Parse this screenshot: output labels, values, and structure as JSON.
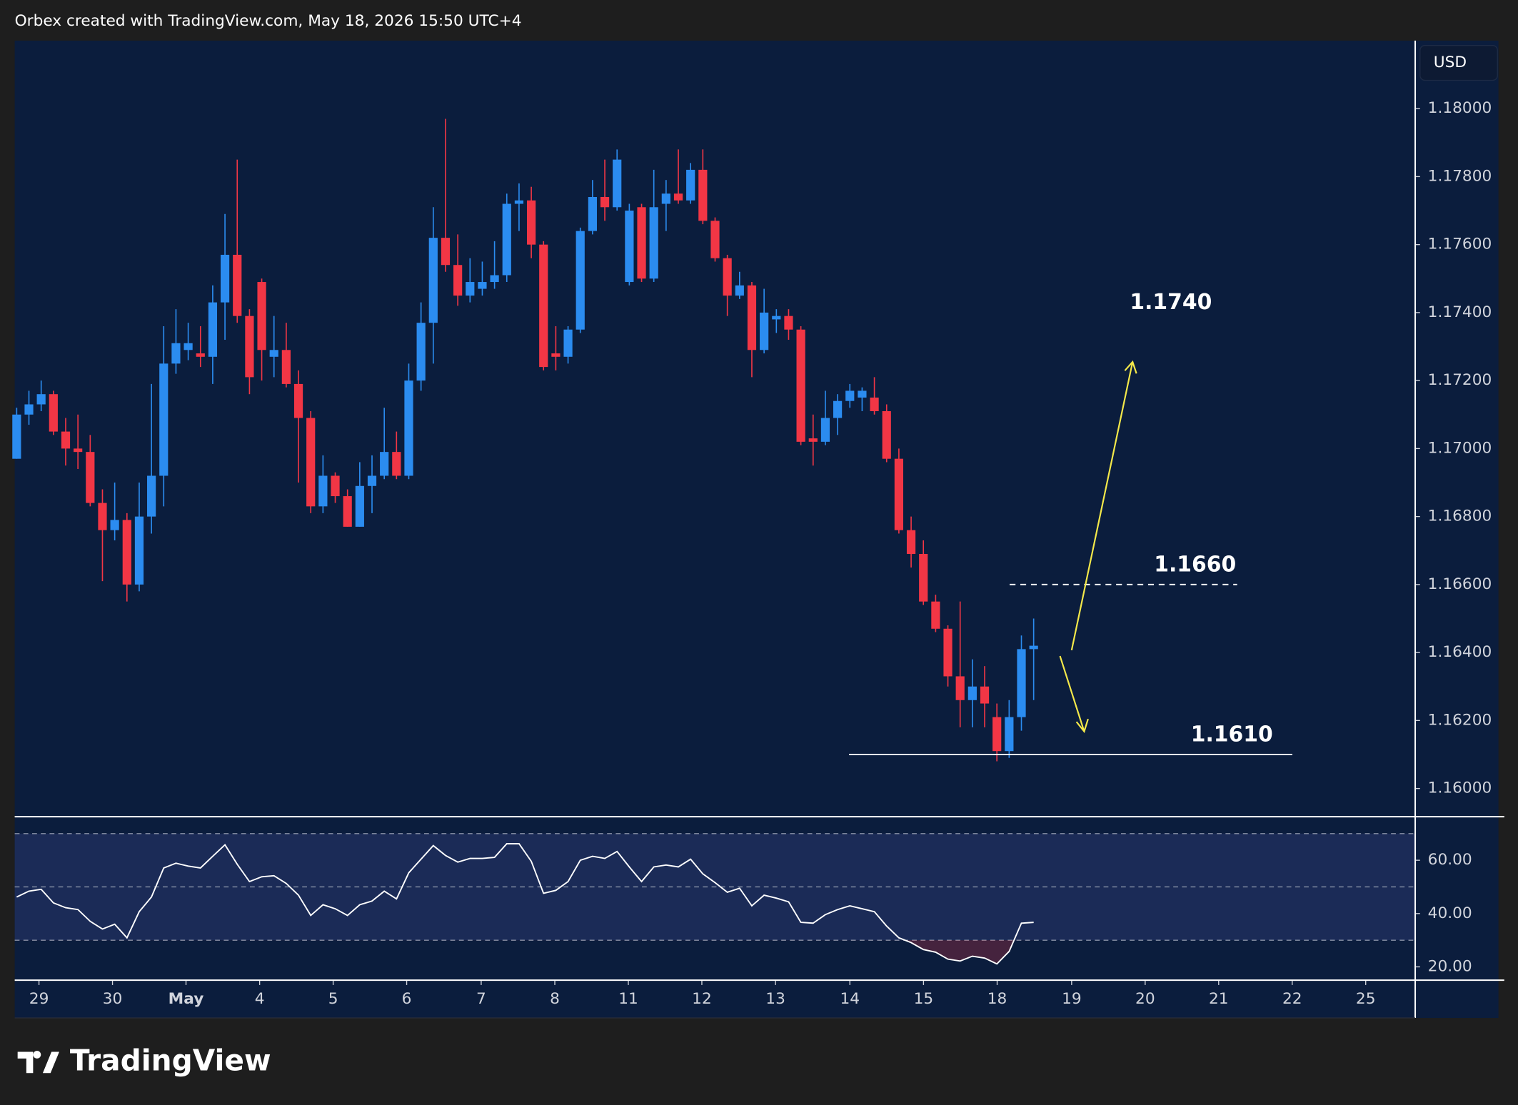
{
  "header": {
    "text": "Orbex created with TradingView.com, May 18, 2026 15:50 UTC+4"
  },
  "chart_data": {
    "type": "candlestick",
    "currency": "USD",
    "up_color": "#2b8cf0",
    "down_color": "#f23645",
    "open": [
      1.1697,
      1.171,
      1.1713,
      1.1716,
      1.1705,
      1.17,
      1.1699,
      1.1684,
      1.1676,
      1.1679,
      1.166,
      1.168,
      1.1692,
      1.1725,
      1.1729,
      1.1728,
      1.1727,
      1.1743,
      1.1757,
      1.1739,
      1.1749,
      1.1727,
      1.1729,
      1.1719,
      1.1709,
      1.1683,
      1.1692,
      1.1686,
      1.1677,
      1.1689,
      1.1692,
      1.1699,
      1.1692,
      1.172,
      1.1737,
      1.1762,
      1.1754,
      1.1745,
      1.1747,
      1.1749,
      1.1751,
      1.1772,
      1.1773,
      1.176,
      1.1728,
      1.1727,
      1.1735,
      1.1764,
      1.1774,
      1.1771,
      1.1749,
      1.1771,
      1.175,
      1.1772,
      1.1775,
      1.1773,
      1.1782,
      1.1767,
      1.1756,
      1.1745,
      1.1748,
      1.1729,
      1.1738,
      1.1739,
      1.1735,
      1.1703,
      1.1702,
      1.1709,
      1.1714,
      1.1715,
      1.1715,
      1.1711,
      1.1697,
      1.1676,
      1.1669,
      1.1655,
      1.1647,
      1.1633,
      1.1626,
      1.163,
      1.1621,
      1.1611,
      1.1621,
      1.1641
    ],
    "high": [
      1.1712,
      1.1717,
      1.172,
      1.1717,
      1.1709,
      1.171,
      1.1704,
      1.1688,
      1.169,
      1.1681,
      1.169,
      1.1719,
      1.1736,
      1.1741,
      1.1737,
      1.1736,
      1.1748,
      1.1769,
      1.1785,
      1.1741,
      1.175,
      1.1739,
      1.1737,
      1.1723,
      1.1711,
      1.1698,
      1.1693,
      1.1688,
      1.1696,
      1.1698,
      1.1712,
      1.1705,
      1.1725,
      1.1743,
      1.1771,
      1.1797,
      1.1763,
      1.1756,
      1.1755,
      1.1761,
      1.1775,
      1.1778,
      1.1777,
      1.1761,
      1.1736,
      1.1736,
      1.1765,
      1.1779,
      1.1785,
      1.1788,
      1.1772,
      1.1772,
      1.1782,
      1.1779,
      1.1788,
      1.1784,
      1.1788,
      1.1768,
      1.1757,
      1.1752,
      1.1749,
      1.1747,
      1.1741,
      1.1741,
      1.1736,
      1.171,
      1.1717,
      1.1716,
      1.1719,
      1.1718,
      1.1721,
      1.1713,
      1.17,
      1.168,
      1.1673,
      1.1657,
      1.1648,
      1.1655,
      1.1638,
      1.1636,
      1.1625,
      1.1626,
      1.1645,
      1.165
    ],
    "low": [
      1.1697,
      1.1707,
      1.1711,
      1.1704,
      1.1695,
      1.1694,
      1.1683,
      1.1661,
      1.1673,
      1.1655,
      1.1658,
      1.1675,
      1.1683,
      1.1722,
      1.1726,
      1.1724,
      1.1719,
      1.1732,
      1.1737,
      1.1716,
      1.172,
      1.1721,
      1.1718,
      1.169,
      1.1681,
      1.1681,
      1.1684,
      1.1677,
      1.1677,
      1.1681,
      1.1691,
      1.1691,
      1.1691,
      1.1717,
      1.1725,
      1.1752,
      1.1742,
      1.1743,
      1.1745,
      1.1747,
      1.1749,
      1.1764,
      1.1756,
      1.1723,
      1.1723,
      1.1725,
      1.1734,
      1.1763,
      1.1767,
      1.177,
      1.1748,
      1.1749,
      1.1749,
      1.1764,
      1.1772,
      1.1772,
      1.1766,
      1.1755,
      1.1739,
      1.1744,
      1.1721,
      1.1728,
      1.1734,
      1.1732,
      1.1701,
      1.1695,
      1.1701,
      1.1704,
      1.1712,
      1.1711,
      1.171,
      1.1696,
      1.1675,
      1.1665,
      1.1654,
      1.1646,
      1.163,
      1.1618,
      1.1618,
      1.1618,
      1.1608,
      1.1609,
      1.1617,
      1.1626
    ],
    "close": [
      1.171,
      1.1713,
      1.1716,
      1.1705,
      1.17,
      1.1699,
      1.1684,
      1.1676,
      1.1679,
      1.166,
      1.168,
      1.1692,
      1.1725,
      1.1731,
      1.1731,
      1.1727,
      1.1743,
      1.1757,
      1.1739,
      1.1721,
      1.1729,
      1.1729,
      1.1719,
      1.1709,
      1.1683,
      1.1692,
      1.1686,
      1.1677,
      1.1689,
      1.1692,
      1.1699,
      1.1692,
      1.172,
      1.1737,
      1.1762,
      1.1754,
      1.1745,
      1.1749,
      1.1749,
      1.1751,
      1.1772,
      1.1773,
      1.176,
      1.1724,
      1.1727,
      1.1735,
      1.1764,
      1.1774,
      1.1771,
      1.1785,
      1.177,
      1.175,
      1.1771,
      1.1775,
      1.1773,
      1.1782,
      1.1767,
      1.1756,
      1.1745,
      1.1748,
      1.1729,
      1.174,
      1.1739,
      1.1735,
      1.1702,
      1.1702,
      1.1709,
      1.1714,
      1.1717,
      1.1717,
      1.1711,
      1.1697,
      1.1676,
      1.1669,
      1.1655,
      1.1647,
      1.1633,
      1.1626,
      1.163,
      1.1625,
      1.1611,
      1.1621,
      1.1641,
      1.1642
    ],
    "ylim": [
      1.1592,
      1.182
    ],
    "yticks": [
      {
        "value": 1.16,
        "label": "1.16000"
      },
      {
        "value": 1.162,
        "label": "1.16200"
      },
      {
        "value": 1.164,
        "label": "1.16400"
      },
      {
        "value": 1.166,
        "label": "1.16600"
      },
      {
        "value": 1.168,
        "label": "1.16800"
      },
      {
        "value": 1.17,
        "label": "1.17000"
      },
      {
        "value": 1.172,
        "label": "1.17200"
      },
      {
        "value": 1.174,
        "label": "1.17400"
      },
      {
        "value": 1.176,
        "label": "1.17600"
      },
      {
        "value": 1.178,
        "label": "1.17800"
      },
      {
        "value": 1.18,
        "label": "1.18000"
      }
    ],
    "xlim": [
      -0.16,
      114.14
    ],
    "xticks": [
      {
        "value": 1.82,
        "label": "29"
      },
      {
        "value": 7.82,
        "label": "30"
      },
      {
        "value": 13.82,
        "label": "May"
      },
      {
        "value": 19.83,
        "label": "4"
      },
      {
        "value": 25.83,
        "label": "5"
      },
      {
        "value": 31.83,
        "label": "6"
      },
      {
        "value": 37.91,
        "label": "7"
      },
      {
        "value": 43.92,
        "label": "8"
      },
      {
        "value": 49.92,
        "label": "11"
      },
      {
        "value": 55.92,
        "label": "12"
      },
      {
        "value": 61.93,
        "label": "13"
      },
      {
        "value": 68.0,
        "label": "14"
      },
      {
        "value": 74.01,
        "label": "15"
      },
      {
        "value": 80.02,
        "label": "18"
      },
      {
        "value": 86.1,
        "label": "19"
      },
      {
        "value": 92.1,
        "label": "20"
      },
      {
        "value": 98.1,
        "label": "21"
      },
      {
        "value": 104.1,
        "label": "22"
      },
      {
        "value": 110.1,
        "label": "25"
      }
    ],
    "levels": [
      {
        "value": 1.161,
        "label": "1.1610",
        "style": "solid"
      },
      {
        "value": 1.166,
        "label": "1.1660",
        "style": "dashed"
      }
    ],
    "targets": [
      {
        "value": 1.174,
        "label": "1.1740"
      }
    ],
    "indicator": {
      "type": "line",
      "color": "#ffffff",
      "values": [
        46.2,
        48.4,
        49.1,
        44.0,
        42.2,
        41.5,
        37.1,
        34.2,
        36.0,
        30.9,
        40.7,
        46.2,
        57.1,
        58.9,
        57.8,
        57.1,
        61.5,
        65.8,
        58.5,
        52.0,
        53.8,
        54.2,
        51.3,
        46.9,
        39.3,
        43.3,
        41.8,
        39.3,
        43.3,
        44.7,
        48.4,
        45.5,
        55.3,
        60.4,
        65.5,
        61.8,
        59.3,
        60.7,
        60.7,
        61.1,
        66.2,
        66.2,
        59.6,
        47.6,
        48.7,
        52.0,
        60.0,
        61.5,
        60.7,
        63.3,
        57.5,
        52.0,
        57.5,
        58.2,
        57.5,
        60.4,
        54.9,
        51.6,
        48.0,
        49.5,
        42.9,
        46.9,
        45.8,
        44.4,
        36.7,
        36.4,
        39.6,
        41.5,
        42.9,
        41.8,
        40.7,
        35.3,
        30.9,
        29.1,
        26.5,
        25.5,
        22.9,
        22.2,
        24.0,
        23.3,
        21.1,
        25.8,
        36.4,
        36.7
      ],
      "ylim": [
        15,
        76
      ],
      "yticks": [
        {
          "value": 20,
          "label": "20.00"
        },
        {
          "value": 40,
          "label": "40.00"
        },
        {
          "value": 60,
          "label": "60.00"
        }
      ],
      "levels": [
        30,
        50,
        70
      ]
    }
  },
  "footer": {
    "logo": "TradingView"
  }
}
